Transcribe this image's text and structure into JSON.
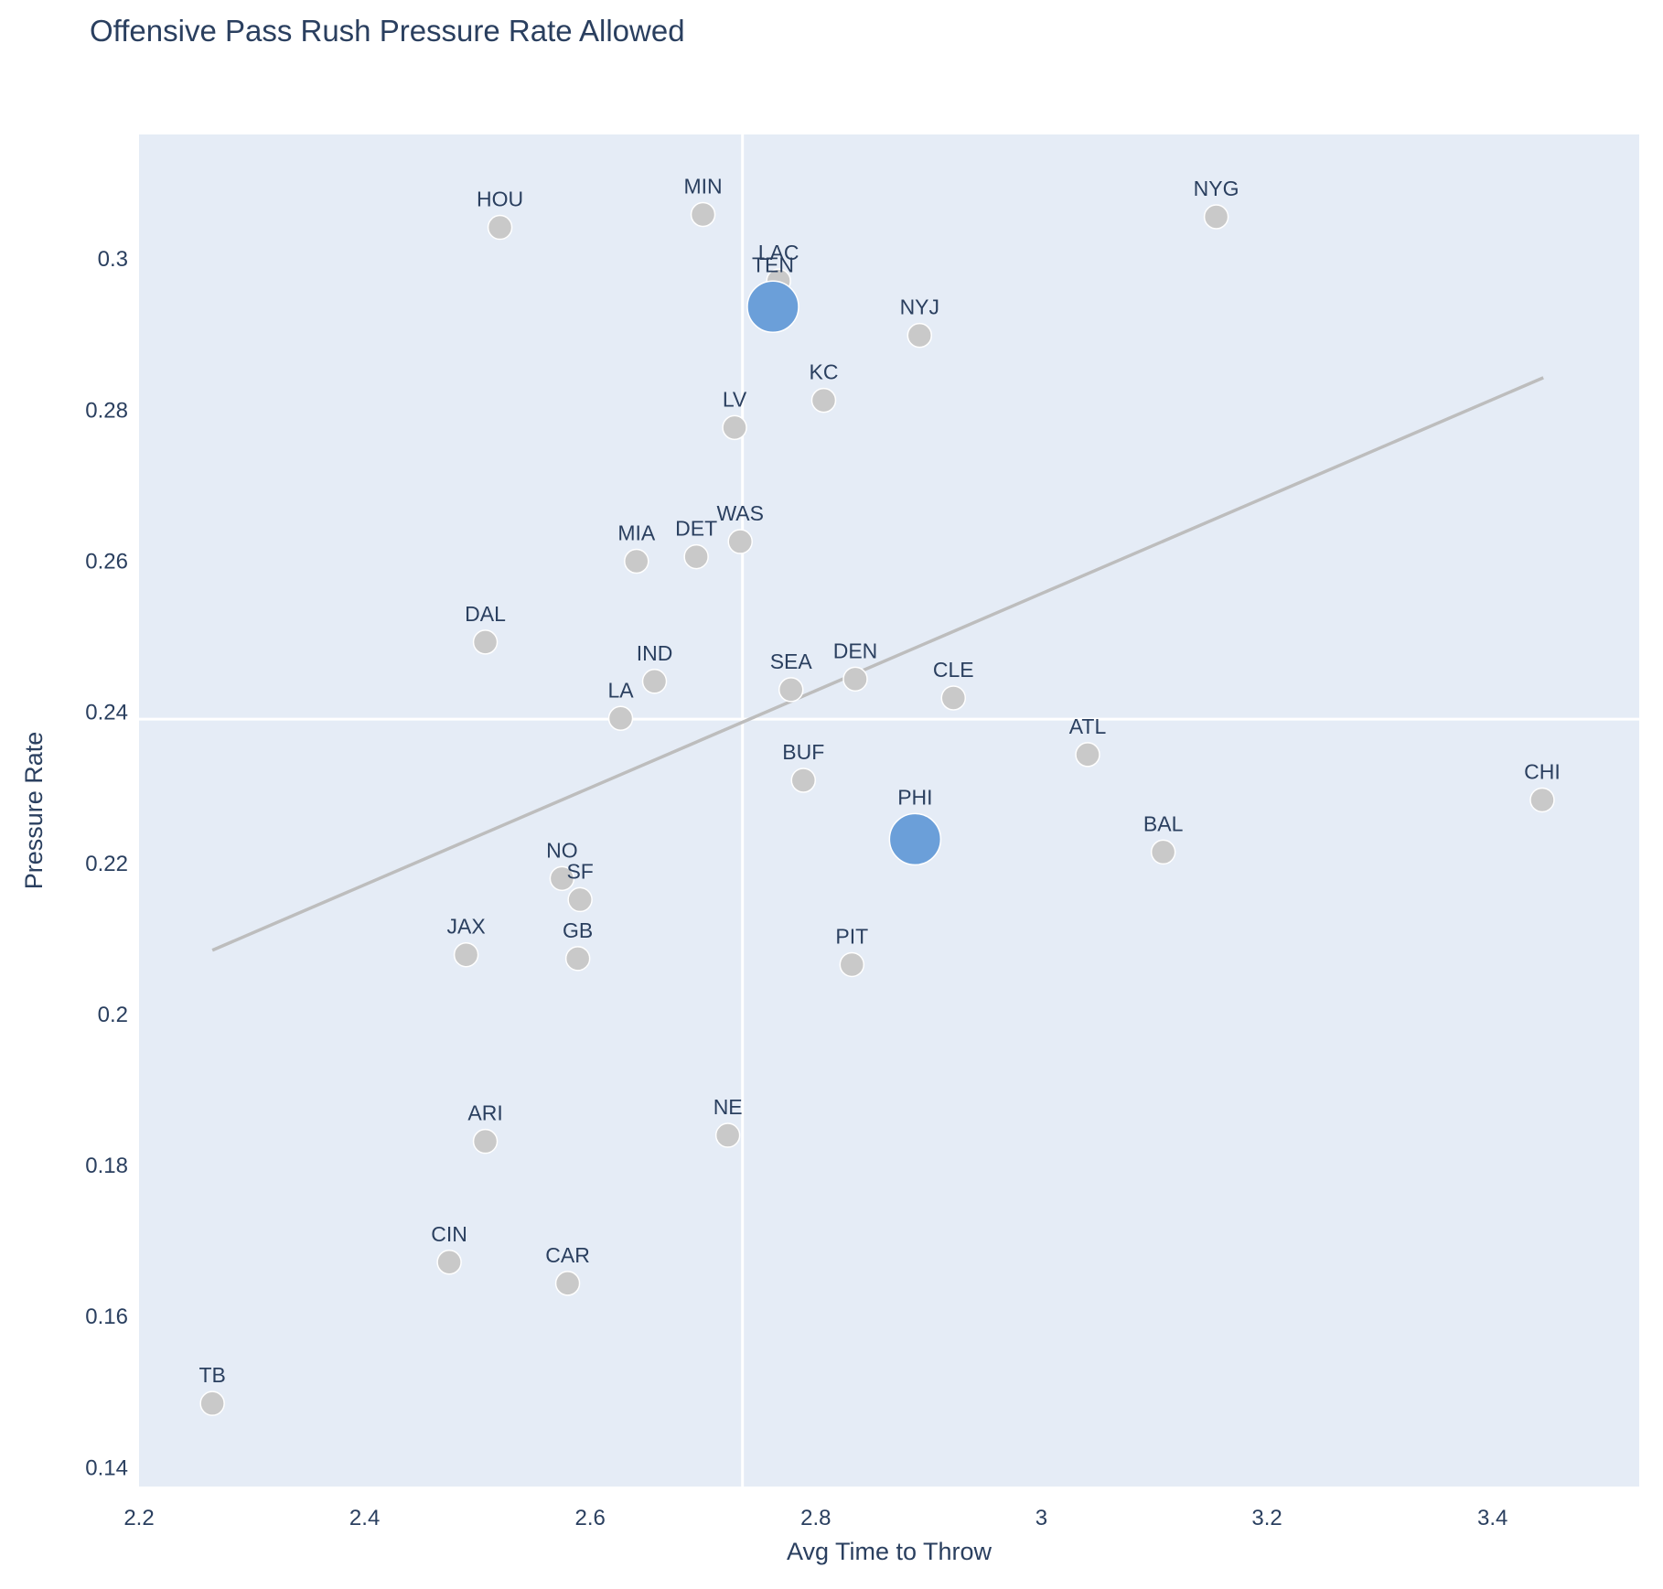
{
  "chart_data": {
    "type": "scatter",
    "title": "Offensive Pass Rush Pressure Rate Allowed",
    "xlabel": "Avg Time to Throw",
    "ylabel": "Pressure Rate",
    "xlim": [
      2.2,
      3.53
    ],
    "ylim": [
      0.1375,
      0.3165
    ],
    "xticks": [
      "2.2",
      "2.4",
      "2.6",
      "2.8",
      "3",
      "3.2",
      "3.4"
    ],
    "yticks": [
      "0.14",
      "0.16",
      "0.18",
      "0.2",
      "0.22",
      "0.24",
      "0.26",
      "0.28",
      "0.3"
    ],
    "reference_lines": {
      "x": 2.735,
      "y": 0.2391
    },
    "trendline": {
      "x": [
        2.265,
        3.445
      ],
      "y": [
        0.2085,
        0.2843
      ]
    },
    "grid": false,
    "legend": "none",
    "colors": {
      "default": "#c9c9c9",
      "highlight": "#6b9fd9",
      "trendline": "#bdbdbd",
      "reference_line": "#ffffff",
      "plot_bg": "#e5ecf6"
    },
    "points": [
      {
        "team": "HOU",
        "x": 2.52,
        "y": 0.3042,
        "highlight": false
      },
      {
        "team": "MIN",
        "x": 2.7,
        "y": 0.3059,
        "highlight": false
      },
      {
        "team": "NYG",
        "x": 3.155,
        "y": 0.3056,
        "highlight": false
      },
      {
        "team": "LAC",
        "x": 2.767,
        "y": 0.2971,
        "highlight": false
      },
      {
        "team": "TEN",
        "x": 2.762,
        "y": 0.2937,
        "highlight": true
      },
      {
        "team": "NYJ",
        "x": 2.892,
        "y": 0.2899,
        "highlight": false
      },
      {
        "team": "KC",
        "x": 2.807,
        "y": 0.2813,
        "highlight": false
      },
      {
        "team": "LV",
        "x": 2.728,
        "y": 0.2777,
        "highlight": false
      },
      {
        "team": "WAS",
        "x": 2.733,
        "y": 0.2626,
        "highlight": false
      },
      {
        "team": "DET",
        "x": 2.694,
        "y": 0.2606,
        "highlight": false
      },
      {
        "team": "MIA",
        "x": 2.641,
        "y": 0.26,
        "highlight": false
      },
      {
        "team": "DAL",
        "x": 2.507,
        "y": 0.2493,
        "highlight": false
      },
      {
        "team": "IND",
        "x": 2.657,
        "y": 0.2441,
        "highlight": false
      },
      {
        "team": "DEN",
        "x": 2.835,
        "y": 0.2444,
        "highlight": false
      },
      {
        "team": "SEA",
        "x": 2.778,
        "y": 0.243,
        "highlight": false
      },
      {
        "team": "CLE",
        "x": 2.922,
        "y": 0.2419,
        "highlight": false
      },
      {
        "team": "LA",
        "x": 2.627,
        "y": 0.2392,
        "highlight": false
      },
      {
        "team": "ATL",
        "x": 3.041,
        "y": 0.2344,
        "highlight": false
      },
      {
        "team": "BUF",
        "x": 2.789,
        "y": 0.231,
        "highlight": false
      },
      {
        "team": "CHI",
        "x": 3.444,
        "y": 0.2284,
        "highlight": false
      },
      {
        "team": "PHI",
        "x": 2.888,
        "y": 0.2232,
        "highlight": true
      },
      {
        "team": "BAL",
        "x": 3.108,
        "y": 0.2215,
        "highlight": false
      },
      {
        "team": "NO",
        "x": 2.575,
        "y": 0.218,
        "highlight": false
      },
      {
        "team": "SF",
        "x": 2.591,
        "y": 0.2152,
        "highlight": false
      },
      {
        "team": "JAX",
        "x": 2.49,
        "y": 0.2079,
        "highlight": false
      },
      {
        "team": "GB",
        "x": 2.589,
        "y": 0.2074,
        "highlight": false
      },
      {
        "team": "PIT",
        "x": 2.832,
        "y": 0.2066,
        "highlight": false
      },
      {
        "team": "NE",
        "x": 2.722,
        "y": 0.184,
        "highlight": false
      },
      {
        "team": "ARI",
        "x": 2.507,
        "y": 0.1832,
        "highlight": false
      },
      {
        "team": "CIN",
        "x": 2.475,
        "y": 0.1672,
        "highlight": false
      },
      {
        "team": "CAR",
        "x": 2.58,
        "y": 0.1644,
        "highlight": false
      },
      {
        "team": "TB",
        "x": 2.265,
        "y": 0.1485,
        "highlight": false
      }
    ]
  }
}
